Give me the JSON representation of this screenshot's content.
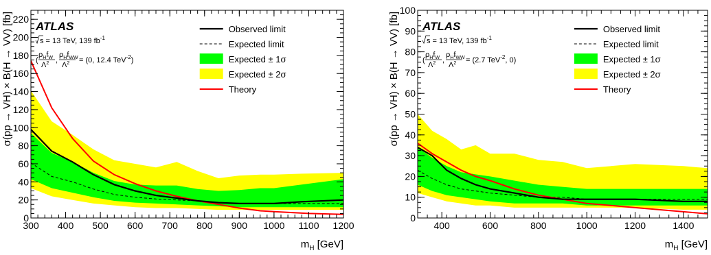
{
  "chart_data": [
    {
      "type": "line",
      "panel": "left",
      "experiment_label": "ATLAS",
      "energy_text": "s = 13 TeV, 139 fb",
      "energy_superscript": "-1",
      "coupling_text": "= (0, 12.4 TeV",
      "coupling_superscript": "-2",
      "coupling_close": ")",
      "xlabel": "m",
      "xlabel_sub": "H",
      "xlabel_unit": "[GeV]",
      "ylabel": "σ(pp → VH) × B(H → VV) [fb]",
      "xlim": [
        300,
        1200
      ],
      "ylim": [
        0,
        230
      ],
      "x_ticks": [
        300,
        400,
        500,
        600,
        700,
        800,
        900,
        1000,
        1100,
        1200
      ],
      "y_ticks": [
        0,
        20,
        40,
        60,
        80,
        100,
        120,
        140,
        160,
        180,
        200,
        220
      ],
      "legend_position": "top-right",
      "legend": [
        {
          "key": "observed",
          "label": "Observed limit"
        },
        {
          "key": "expected",
          "label": "Expected limit"
        },
        {
          "key": "band1",
          "label": "Expected ± 1σ"
        },
        {
          "key": "band2",
          "label": "Expected ± 2σ"
        },
        {
          "key": "theory",
          "label": "Theory"
        }
      ],
      "x": [
        300,
        360,
        420,
        480,
        540,
        600,
        660,
        720,
        780,
        840,
        900,
        960,
        1000,
        1080,
        1200
      ],
      "observed": [
        98,
        74,
        62,
        48,
        37,
        30,
        25,
        22,
        19,
        17,
        16,
        16,
        16,
        18,
        20
      ],
      "expected": [
        61,
        46,
        40,
        32,
        26,
        23,
        21,
        20,
        19,
        17,
        16,
        16,
        16,
        16,
        16
      ],
      "band1_low": [
        43,
        33,
        28,
        23,
        19,
        17,
        16,
        15,
        14,
        13,
        12,
        12,
        12,
        12,
        12
      ],
      "band1_high": [
        94,
        72,
        62,
        50,
        41,
        37,
        36,
        36,
        32,
        30,
        31,
        33,
        33,
        37,
        43
      ],
      "band2_low": [
        33,
        24,
        20,
        16,
        14,
        12,
        11,
        11,
        10,
        9,
        9,
        9,
        9,
        9,
        9
      ],
      "band2_high": [
        141,
        107,
        92,
        76,
        64,
        60,
        56,
        62,
        52,
        44,
        47,
        48,
        48,
        49,
        50
      ],
      "theory_x": [
        300,
        360,
        420,
        480,
        540,
        600,
        660,
        720,
        780,
        840,
        900,
        960,
        1000,
        1100,
        1200
      ],
      "theory": [
        174,
        122,
        88,
        63,
        48,
        38,
        30,
        24,
        19,
        15,
        11,
        8,
        7,
        5,
        4
      ],
      "colors": {
        "observed": "#000000",
        "expected": "#000000",
        "band1": "#00ff00",
        "band2": "#ffff00",
        "theory": "#ff0000"
      }
    },
    {
      "type": "line",
      "panel": "right",
      "experiment_label": "ATLAS",
      "energy_text": "s = 13 TeV, 139 fb",
      "energy_superscript": "-1",
      "coupling_text": "= (2.7 TeV",
      "coupling_superscript": "-2",
      "coupling_close": ", 0)",
      "xlabel": "m",
      "xlabel_sub": "H",
      "xlabel_unit": "[GeV]",
      "ylabel": "σ(pp → VH) × B(H → VV) [fb]",
      "xlim": [
        300,
        1500
      ],
      "ylim": [
        0,
        100
      ],
      "x_ticks": [
        400,
        600,
        800,
        1000,
        1200,
        1400
      ],
      "y_ticks": [
        0,
        10,
        20,
        30,
        40,
        50,
        60,
        70,
        80,
        90,
        100
      ],
      "legend_position": "top-right",
      "legend": [
        {
          "key": "observed",
          "label": "Observed limit"
        },
        {
          "key": "expected",
          "label": "Expected limit"
        },
        {
          "key": "band1",
          "label": "Expected ± 1σ"
        },
        {
          "key": "band2",
          "label": "Expected ± 2σ"
        },
        {
          "key": "theory",
          "label": "Theory"
        }
      ],
      "x": [
        300,
        360,
        420,
        480,
        540,
        600,
        700,
        800,
        900,
        1000,
        1200,
        1400,
        1500
      ],
      "observed": [
        34,
        30,
        23,
        19,
        16,
        14,
        12,
        10,
        9,
        9,
        9,
        8,
        8
      ],
      "expected": [
        23,
        19,
        16,
        14,
        13,
        12,
        11,
        10,
        10,
        9,
        9,
        9,
        9
      ],
      "band1_low": [
        16,
        13,
        11,
        10,
        9,
        8,
        7,
        7,
        7,
        6,
        6,
        6,
        6
      ],
      "band1_high": [
        34,
        29,
        25,
        22,
        21,
        20,
        18,
        16,
        15,
        14,
        14,
        14,
        14
      ],
      "band2_low": [
        12,
        10,
        8,
        7,
        6,
        6,
        5,
        5,
        5,
        5,
        5,
        4,
        4
      ],
      "band2_high": [
        50,
        42,
        38,
        33,
        35,
        31,
        31,
        28,
        27,
        24,
        26,
        25,
        24
      ],
      "theory_x": [
        300,
        360,
        420,
        480,
        540,
        600,
        700,
        800,
        900,
        1000,
        1100,
        1200,
        1300,
        1400,
        1500
      ],
      "theory": [
        36,
        31,
        27,
        23,
        20,
        18,
        14,
        11,
        9,
        7,
        6,
        5,
        4,
        3,
        2
      ],
      "colors": {
        "observed": "#000000",
        "expected": "#000000",
        "band1": "#00ff00",
        "band2": "#ffff00",
        "theory": "#ff0000"
      }
    }
  ]
}
